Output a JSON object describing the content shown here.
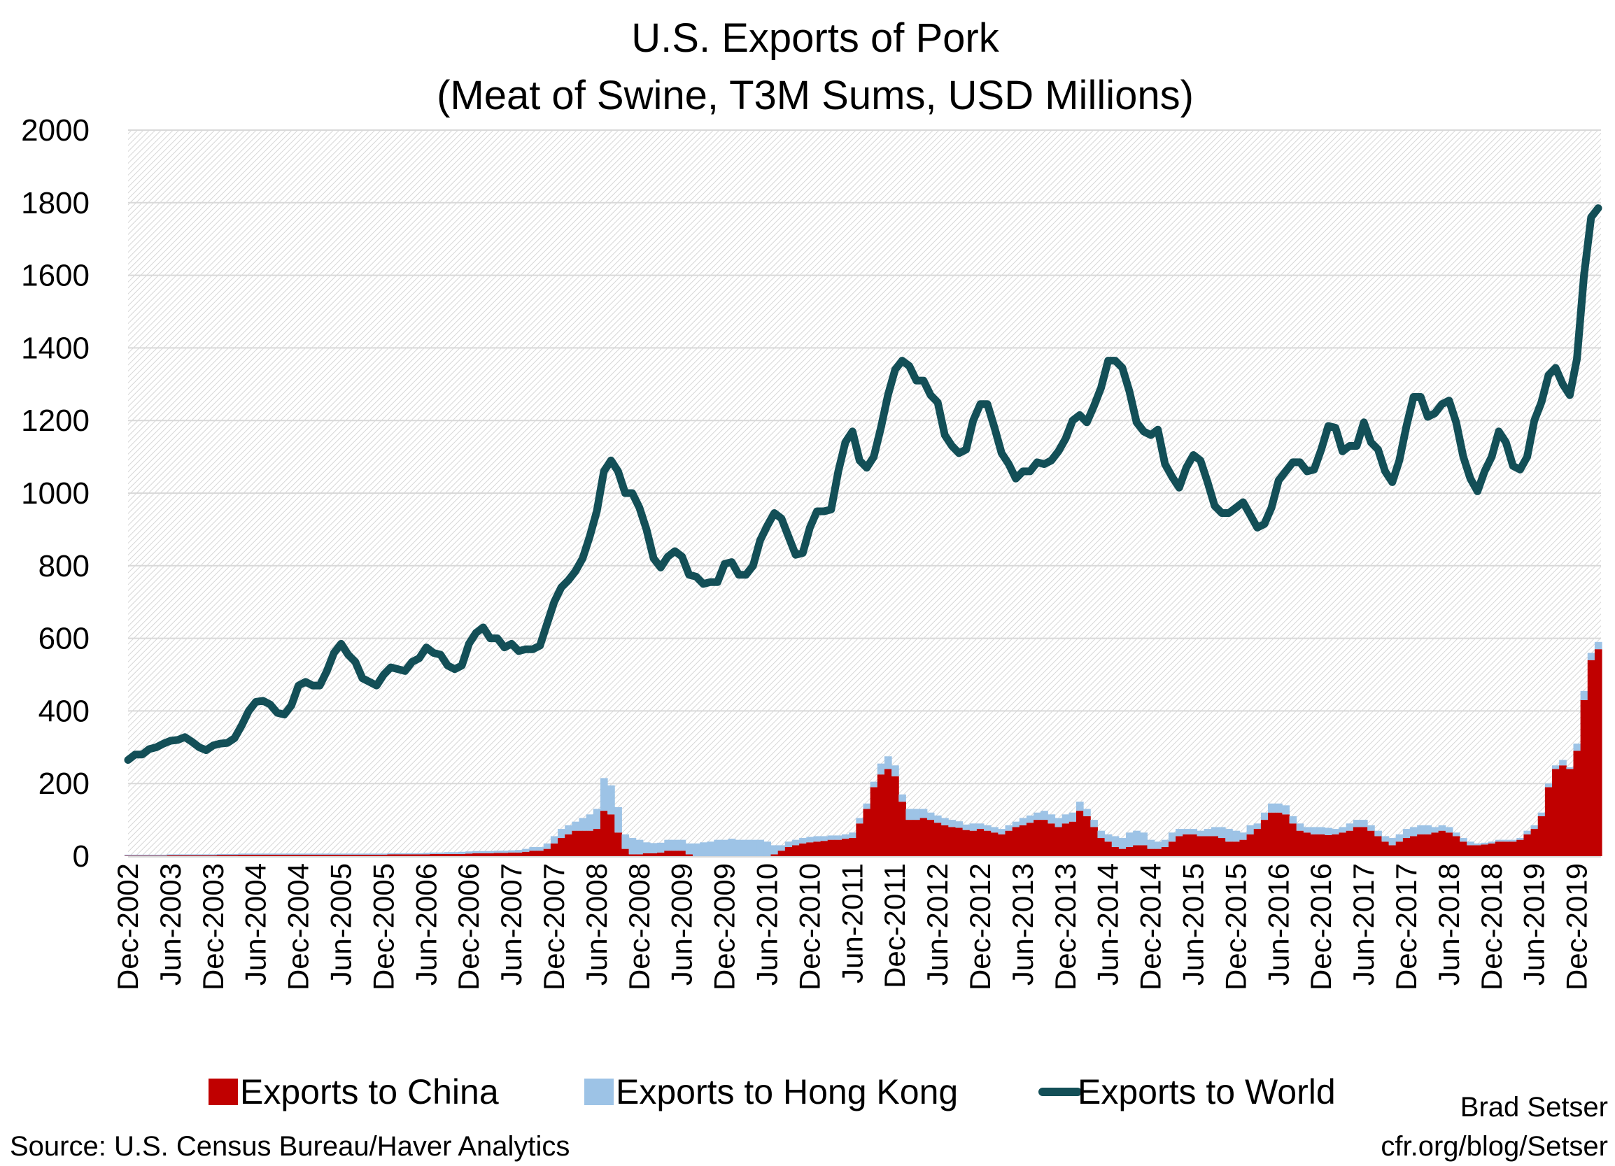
{
  "chart_data": {
    "type": "bar+line",
    "title": "U.S. Exports of Pork",
    "subtitle": "(Meat of Swine, T3M Sums, USD Millions)",
    "xlabel": "",
    "ylabel": "",
    "ylim": [
      0,
      2000
    ],
    "yticks": [
      "0",
      "200",
      "400",
      "600",
      "800",
      "1000",
      "1200",
      "1400",
      "1600",
      "1800",
      "2000"
    ],
    "grid": true,
    "legend_position": "bottom",
    "start_month": "Dec-2002",
    "xtick_labels": [
      "Dec-2002",
      "Jun-2003",
      "Dec-2003",
      "Jun-2004",
      "Dec-2004",
      "Jun-2005",
      "Dec-2005",
      "Jun-2006",
      "Dec-2006",
      "Jun-2007",
      "Dec-2007",
      "Jun-2008",
      "Dec-2008",
      "Jun-2009",
      "Dec-2009",
      "Jun-2010",
      "Dec-2010",
      "Jun-2011",
      "Dec-2011",
      "Jun-2012",
      "Dec-2012",
      "Jun-2013",
      "Dec-2013",
      "Jun-2014",
      "Dec-2014",
      "Jun-2015",
      "Dec-2015",
      "Jun-2016",
      "Dec-2016",
      "Jun-2017",
      "Dec-2017",
      "Jun-2018",
      "Dec-2018",
      "Jun-2019",
      "Dec-2019"
    ],
    "series": [
      {
        "name": "Exports to China",
        "type": "stacked-bar",
        "color": "#C00000",
        "values": [
          1,
          1,
          1,
          1,
          1,
          1,
          2,
          2,
          2,
          2,
          2,
          2,
          2,
          3,
          3,
          3,
          4,
          4,
          4,
          4,
          4,
          4,
          4,
          4,
          4,
          4,
          4,
          4,
          4,
          4,
          4,
          4,
          4,
          4,
          4,
          4,
          4,
          5,
          5,
          5,
          5,
          5,
          5,
          6,
          6,
          6,
          6,
          6,
          7,
          8,
          8,
          8,
          9,
          9,
          10,
          10,
          12,
          15,
          15,
          20,
          35,
          50,
          60,
          70,
          70,
          70,
          75,
          125,
          115,
          65,
          20,
          5,
          5,
          8,
          8,
          10,
          15,
          15,
          15,
          5,
          0,
          0,
          0,
          0,
          0,
          0,
          0,
          0,
          0,
          0,
          0,
          5,
          15,
          25,
          30,
          35,
          38,
          40,
          42,
          45,
          45,
          48,
          50,
          90,
          130,
          190,
          225,
          240,
          220,
          150,
          100,
          100,
          105,
          100,
          92,
          85,
          80,
          78,
          72,
          70,
          75,
          70,
          65,
          60,
          70,
          80,
          85,
          92,
          100,
          100,
          90,
          80,
          90,
          95,
          125,
          110,
          80,
          50,
          40,
          25,
          20,
          25,
          30,
          30,
          20,
          20,
          25,
          40,
          55,
          60,
          60,
          55,
          55,
          55,
          50,
          40,
          40,
          45,
          60,
          75,
          100,
          120,
          120,
          115,
          90,
          70,
          65,
          60,
          60,
          58,
          60,
          65,
          70,
          80,
          80,
          70,
          55,
          40,
          30,
          40,
          50,
          55,
          60,
          60,
          65,
          70,
          65,
          55,
          40,
          30,
          30,
          32,
          35,
          40,
          40,
          40,
          45,
          60,
          75,
          110,
          190,
          240,
          250,
          240,
          290,
          430,
          540,
          570
        ]
      },
      {
        "name": "Exports to Hong Kong",
        "type": "stacked-bar",
        "color": "#9DC3E6",
        "values": [
          3,
          3,
          3,
          3,
          3,
          3,
          3,
          3,
          3,
          3,
          3,
          3,
          3,
          3,
          3,
          3,
          3,
          3,
          3,
          3,
          3,
          3,
          3,
          3,
          3,
          3,
          3,
          3,
          3,
          3,
          3,
          3,
          3,
          3,
          3,
          3,
          3,
          3,
          3,
          3,
          3,
          3,
          4,
          4,
          4,
          5,
          5,
          6,
          6,
          6,
          6,
          6,
          6,
          6,
          6,
          7,
          8,
          10,
          10,
          15,
          20,
          25,
          25,
          25,
          35,
          45,
          55,
          90,
          80,
          70,
          40,
          45,
          40,
          30,
          28,
          27,
          30,
          30,
          30,
          30,
          35,
          38,
          40,
          45,
          45,
          48,
          45,
          45,
          45,
          45,
          40,
          25,
          15,
          15,
          15,
          15,
          15,
          15,
          13,
          12,
          12,
          12,
          15,
          15,
          15,
          15,
          30,
          35,
          30,
          20,
          30,
          30,
          25,
          20,
          20,
          20,
          20,
          18,
          15,
          20,
          15,
          15,
          15,
          15,
          15,
          15,
          20,
          20,
          20,
          25,
          25,
          25,
          25,
          25,
          25,
          20,
          20,
          20,
          20,
          30,
          30,
          40,
          40,
          35,
          25,
          20,
          20,
          25,
          20,
          15,
          15,
          15,
          20,
          25,
          30,
          35,
          30,
          20,
          25,
          15,
          20,
          25,
          25,
          25,
          20,
          20,
          15,
          20,
          20,
          20,
          15,
          15,
          20,
          20,
          20,
          15,
          15,
          15,
          20,
          20,
          25,
          25,
          25,
          25,
          15,
          15,
          15,
          10,
          10,
          10,
          5,
          5,
          5,
          5,
          5,
          5,
          5,
          10,
          10,
          10,
          10,
          10,
          15,
          5,
          20,
          25,
          20,
          20
        ]
      },
      {
        "name": "Exports to World",
        "type": "line",
        "color": "#134F57",
        "values": [
          265,
          280,
          280,
          295,
          300,
          310,
          318,
          320,
          328,
          315,
          300,
          292,
          305,
          310,
          312,
          325,
          360,
          400,
          425,
          428,
          418,
          395,
          390,
          415,
          470,
          480,
          470,
          470,
          510,
          560,
          585,
          555,
          535,
          490,
          480,
          470,
          500,
          520,
          515,
          510,
          535,
          545,
          575,
          560,
          555,
          525,
          515,
          525,
          585,
          615,
          630,
          600,
          600,
          575,
          585,
          565,
          570,
          570,
          580,
          640,
          700,
          740,
          760,
          785,
          820,
          880,
          950,
          1060,
          1090,
          1060,
          1000,
          1000,
          960,
          900,
          820,
          795,
          825,
          840,
          825,
          775,
          770,
          750,
          755,
          755,
          805,
          810,
          775,
          775,
          800,
          870,
          910,
          945,
          930,
          880,
          830,
          835,
          905,
          950,
          950,
          955,
          1060,
          1140,
          1170,
          1090,
          1070,
          1100,
          1180,
          1270,
          1340,
          1365,
          1350,
          1310,
          1310,
          1270,
          1250,
          1160,
          1130,
          1110,
          1120,
          1200,
          1245,
          1245,
          1180,
          1110,
          1080,
          1040,
          1060,
          1060,
          1085,
          1080,
          1090,
          1115,
          1150,
          1200,
          1215,
          1195,
          1240,
          1290,
          1365,
          1365,
          1345,
          1280,
          1195,
          1170,
          1160,
          1175,
          1080,
          1045,
          1015,
          1070,
          1105,
          1090,
          1030,
          965,
          945,
          945,
          960,
          975,
          940,
          905,
          915,
          960,
          1035,
          1060,
          1085,
          1085,
          1060,
          1065,
          1120,
          1185,
          1180,
          1115,
          1130,
          1130,
          1195,
          1140,
          1120,
          1060,
          1030,
          1090,
          1185,
          1265,
          1265,
          1210,
          1220,
          1245,
          1255,
          1195,
          1100,
          1040,
          1005,
          1060,
          1100,
          1170,
          1140,
          1075,
          1065,
          1100,
          1200,
          1250,
          1325,
          1345,
          1300,
          1270,
          1370,
          1600,
          1760,
          1785
        ]
      }
    ],
    "legend": [
      "Exports to China",
      "Exports to Hong Kong",
      "Exports to World"
    ],
    "source": "Source: U.S. Census Bureau/Haver Analytics",
    "author": "Brad Setser",
    "site": "cfr.org/blog/Setser"
  }
}
